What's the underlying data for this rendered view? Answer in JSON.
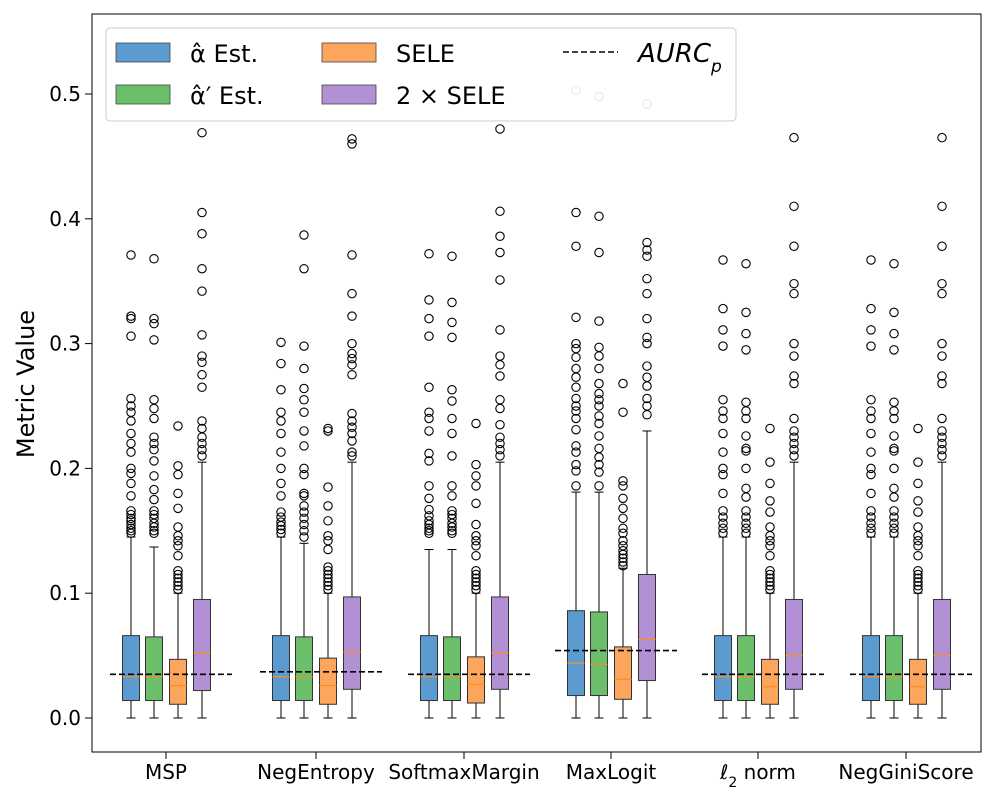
{
  "chart_data": {
    "type": "box",
    "title": "",
    "xlabel": "",
    "ylabel": "Metric Value",
    "ylim": [
      -0.028,
      0.56
    ],
    "yticks": [
      "0.0",
      "0.1",
      "0.2",
      "0.3",
      "0.4",
      "0.5"
    ],
    "ytick_values": [
      0.0,
      0.1,
      0.2,
      0.3,
      0.4,
      0.5
    ],
    "categories": [
      "MSP",
      "NegEntropy",
      "SoftmaxMargin",
      "MaxLogit",
      "ℓ2 norm",
      "NegGiniScore"
    ],
    "legend": {
      "placement": "top-left",
      "items": [
        {
          "label": "α̂ Est.",
          "color": "#5b9bd0"
        },
        {
          "label": "α̂′ Est.",
          "color": "#6bbf6b"
        },
        {
          "label": "SELE",
          "color": "#fca55c"
        },
        {
          "label": "2 × SELE",
          "color": "#b191d4"
        },
        {
          "label": "AURC",
          "sub": "p",
          "style": "dashed",
          "color": "#000000"
        }
      ]
    },
    "aurc_p": [
      0.035,
      0.037,
      0.035,
      0.054,
      0.035,
      0.035
    ],
    "series": [
      {
        "name": "α̂ Est.",
        "color": "#5b9bd0",
        "boxes": [
          {
            "whislo": 0.0,
            "q1": 0.014,
            "med": 0.033,
            "q3": 0.066,
            "whishi": 0.145,
            "fliers": [
              0.148,
              0.15,
              0.152,
              0.155,
              0.158,
              0.16,
              0.163,
              0.166,
              0.178,
              0.188,
              0.196,
              0.2,
              0.213,
              0.22,
              0.228,
              0.238,
              0.245,
              0.25,
              0.256,
              0.306,
              0.32,
              0.322,
              0.371
            ]
          },
          {
            "whislo": 0.0,
            "q1": 0.014,
            "med": 0.033,
            "q3": 0.066,
            "whishi": 0.145,
            "fliers": [
              0.148,
              0.151,
              0.154,
              0.157,
              0.161,
              0.165,
              0.178,
              0.188,
              0.2,
              0.213,
              0.228,
              0.238,
              0.245,
              0.263,
              0.284,
              0.301
            ]
          },
          {
            "whislo": 0.0,
            "q1": 0.014,
            "med": 0.033,
            "q3": 0.066,
            "whishi": 0.135,
            "fliers": [
              0.148,
              0.15,
              0.152,
              0.155,
              0.158,
              0.162,
              0.167,
              0.176,
              0.186,
              0.206,
              0.212,
              0.23,
              0.24,
              0.245,
              0.265,
              0.306,
              0.32,
              0.335,
              0.372
            ]
          },
          {
            "whislo": 0.0,
            "q1": 0.018,
            "med": 0.044,
            "q3": 0.086,
            "whishi": 0.181,
            "fliers": [
              0.186,
              0.198,
              0.203,
              0.213,
              0.218,
              0.231,
              0.24,
              0.246,
              0.25,
              0.256,
              0.265,
              0.273,
              0.28,
              0.289,
              0.296,
              0.3,
              0.321,
              0.378,
              0.405,
              0.503
            ]
          },
          {
            "whislo": 0.0,
            "q1": 0.014,
            "med": 0.033,
            "q3": 0.066,
            "whishi": 0.145,
            "fliers": [
              0.148,
              0.152,
              0.156,
              0.161,
              0.166,
              0.18,
              0.195,
              0.2,
              0.213,
              0.228,
              0.24,
              0.246,
              0.255,
              0.298,
              0.311,
              0.328,
              0.367
            ]
          },
          {
            "whislo": 0.0,
            "q1": 0.014,
            "med": 0.033,
            "q3": 0.066,
            "whishi": 0.145,
            "fliers": [
              0.148,
              0.152,
              0.156,
              0.161,
              0.166,
              0.18,
              0.195,
              0.2,
              0.213,
              0.228,
              0.24,
              0.246,
              0.255,
              0.298,
              0.311,
              0.328,
              0.367
            ]
          }
        ]
      },
      {
        "name": "α̂′ Est.",
        "color": "#6bbf6b",
        "boxes": [
          {
            "whislo": 0.0,
            "q1": 0.014,
            "med": 0.033,
            "q3": 0.065,
            "whishi": 0.137,
            "fliers": [
              0.148,
              0.15,
              0.153,
              0.156,
              0.16,
              0.163,
              0.166,
              0.175,
              0.183,
              0.194,
              0.206,
              0.215,
              0.22,
              0.225,
              0.24,
              0.248,
              0.255,
              0.303,
              0.316,
              0.32,
              0.368
            ]
          },
          {
            "whislo": 0.0,
            "q1": 0.014,
            "med": 0.033,
            "q3": 0.065,
            "whishi": 0.14,
            "fliers": [
              0.145,
              0.15,
              0.155,
              0.16,
              0.165,
              0.17,
              0.178,
              0.18,
              0.195,
              0.2,
              0.218,
              0.23,
              0.245,
              0.255,
              0.264,
              0.28,
              0.298,
              0.36,
              0.387
            ]
          },
          {
            "whislo": 0.0,
            "q1": 0.014,
            "med": 0.033,
            "q3": 0.065,
            "whishi": 0.135,
            "fliers": [
              0.148,
              0.15,
              0.153,
              0.156,
              0.16,
              0.163,
              0.166,
              0.178,
              0.186,
              0.21,
              0.228,
              0.24,
              0.254,
              0.263,
              0.305,
              0.317,
              0.333,
              0.37
            ]
          },
          {
            "whislo": 0.0,
            "q1": 0.018,
            "med": 0.043,
            "q3": 0.085,
            "whishi": 0.181,
            "fliers": [
              0.186,
              0.197,
              0.203,
              0.209,
              0.216,
              0.226,
              0.236,
              0.242,
              0.25,
              0.255,
              0.26,
              0.268,
              0.28,
              0.29,
              0.297,
              0.318,
              0.373,
              0.402,
              0.498
            ]
          },
          {
            "whislo": 0.0,
            "q1": 0.014,
            "med": 0.033,
            "q3": 0.066,
            "whishi": 0.145,
            "fliers": [
              0.148,
              0.152,
              0.156,
              0.161,
              0.166,
              0.177,
              0.184,
              0.2,
              0.214,
              0.216,
              0.226,
              0.24,
              0.246,
              0.253,
              0.295,
              0.308,
              0.325,
              0.364
            ]
          },
          {
            "whislo": 0.0,
            "q1": 0.014,
            "med": 0.033,
            "q3": 0.066,
            "whishi": 0.145,
            "fliers": [
              0.148,
              0.152,
              0.156,
              0.161,
              0.166,
              0.177,
              0.184,
              0.2,
              0.214,
              0.216,
              0.226,
              0.24,
              0.246,
              0.253,
              0.295,
              0.308,
              0.325,
              0.364
            ]
          }
        ]
      },
      {
        "name": "SELE",
        "color": "#fca55c",
        "boxes": [
          {
            "whislo": 0.0,
            "q1": 0.011,
            "med": 0.026,
            "q3": 0.047,
            "whishi": 0.1,
            "fliers": [
              0.103,
              0.106,
              0.109,
              0.112,
              0.115,
              0.118,
              0.13,
              0.138,
              0.142,
              0.146,
              0.153,
              0.168,
              0.18,
              0.195,
              0.202,
              0.234
            ]
          },
          {
            "whislo": 0.0,
            "q1": 0.011,
            "med": 0.026,
            "q3": 0.048,
            "whishi": 0.1,
            "fliers": [
              0.103,
              0.106,
              0.109,
              0.112,
              0.115,
              0.118,
              0.121,
              0.135,
              0.142,
              0.146,
              0.158,
              0.17,
              0.185,
              0.23,
              0.232
            ]
          },
          {
            "whislo": 0.0,
            "q1": 0.012,
            "med": 0.027,
            "q3": 0.049,
            "whishi": 0.1,
            "fliers": [
              0.103,
              0.106,
              0.109,
              0.112,
              0.115,
              0.118,
              0.13,
              0.138,
              0.142,
              0.146,
              0.155,
              0.172,
              0.186,
              0.194,
              0.203,
              0.236
            ]
          },
          {
            "whislo": 0.0,
            "q1": 0.015,
            "med": 0.031,
            "q3": 0.057,
            "whishi": 0.12,
            "fliers": [
              0.122,
              0.125,
              0.128,
              0.131,
              0.134,
              0.138,
              0.142,
              0.148,
              0.152,
              0.16,
              0.168,
              0.176,
              0.186,
              0.19,
              0.245,
              0.268
            ]
          },
          {
            "whislo": 0.0,
            "q1": 0.011,
            "med": 0.025,
            "q3": 0.047,
            "whishi": 0.1,
            "fliers": [
              0.103,
              0.106,
              0.109,
              0.112,
              0.115,
              0.118,
              0.13,
              0.138,
              0.142,
              0.146,
              0.153,
              0.165,
              0.174,
              0.188,
              0.205,
              0.232
            ]
          },
          {
            "whislo": 0.0,
            "q1": 0.011,
            "med": 0.025,
            "q3": 0.047,
            "whishi": 0.1,
            "fliers": [
              0.103,
              0.106,
              0.109,
              0.112,
              0.115,
              0.118,
              0.13,
              0.138,
              0.142,
              0.146,
              0.153,
              0.165,
              0.174,
              0.188,
              0.205,
              0.232
            ]
          }
        ]
      },
      {
        "name": "2 × SELE",
        "color": "#b191d4",
        "boxes": [
          {
            "whislo": 0.0,
            "q1": 0.022,
            "med": 0.052,
            "q3": 0.095,
            "whishi": 0.205,
            "fliers": [
              0.21,
              0.215,
              0.22,
              0.225,
              0.232,
              0.238,
              0.265,
              0.275,
              0.285,
              0.29,
              0.307,
              0.342,
              0.36,
              0.388,
              0.405,
              0.469
            ]
          },
          {
            "whislo": 0.0,
            "q1": 0.023,
            "med": 0.053,
            "q3": 0.097,
            "whishi": 0.205,
            "fliers": [
              0.21,
              0.213,
              0.222,
              0.228,
              0.233,
              0.238,
              0.244,
              0.275,
              0.283,
              0.288,
              0.292,
              0.3,
              0.322,
              0.34,
              0.371,
              0.46,
              0.464
            ]
          },
          {
            "whislo": 0.0,
            "q1": 0.023,
            "med": 0.052,
            "q3": 0.097,
            "whishi": 0.205,
            "fliers": [
              0.21,
              0.215,
              0.22,
              0.225,
              0.235,
              0.248,
              0.255,
              0.274,
              0.283,
              0.29,
              0.311,
              0.351,
              0.373,
              0.386,
              0.406,
              0.472
            ]
          },
          {
            "whislo": 0.0,
            "q1": 0.03,
            "med": 0.063,
            "q3": 0.115,
            "whishi": 0.23,
            "fliers": [
              0.243,
              0.25,
              0.256,
              0.266,
              0.273,
              0.282,
              0.3,
              0.305,
              0.32,
              0.34,
              0.352,
              0.37,
              0.375,
              0.381,
              0.492
            ]
          },
          {
            "whislo": 0.0,
            "q1": 0.023,
            "med": 0.05,
            "q3": 0.095,
            "whishi": 0.205,
            "fliers": [
              0.21,
              0.215,
              0.22,
              0.225,
              0.23,
              0.24,
              0.268,
              0.274,
              0.29,
              0.3,
              0.34,
              0.348,
              0.378,
              0.41,
              0.465
            ]
          },
          {
            "whislo": 0.0,
            "q1": 0.023,
            "med": 0.05,
            "q3": 0.095,
            "whishi": 0.205,
            "fliers": [
              0.21,
              0.215,
              0.22,
              0.225,
              0.23,
              0.24,
              0.268,
              0.274,
              0.29,
              0.3,
              0.34,
              0.348,
              0.378,
              0.41,
              0.465
            ]
          }
        ]
      }
    ]
  }
}
